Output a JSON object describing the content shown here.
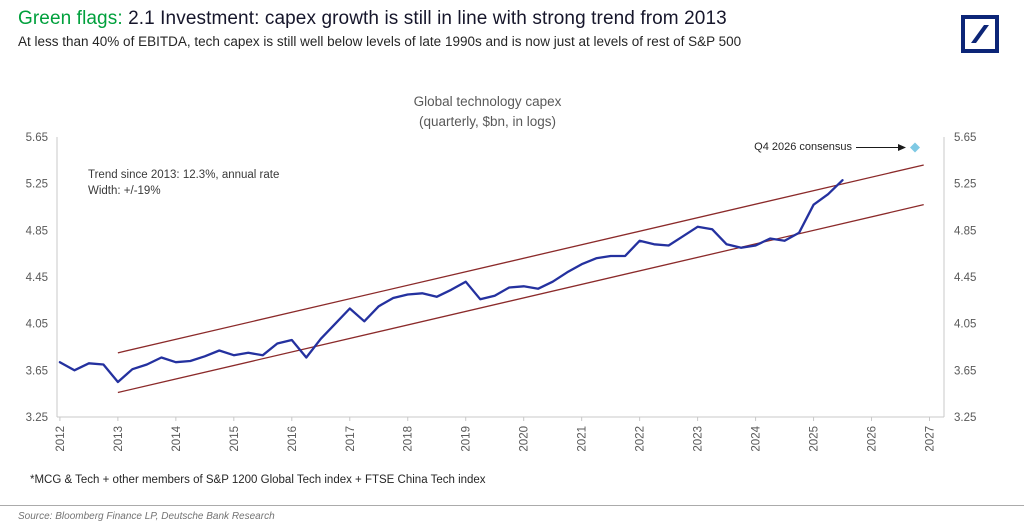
{
  "theme": {
    "green": "#00A03C",
    "title_color": "#16162B",
    "navy": "#0C2577",
    "gray_text": "#595959",
    "axis_gray": "#C8C8C8"
  },
  "header": {
    "title_highlight": "Green flags:",
    "title_rest": " 2.1 Investment: capex growth is still in line with strong trend from 2013",
    "subtitle": "At less than 40% of EBITDA, tech capex is still well below levels of late 1990s and is now just at levels of rest of S&P 500"
  },
  "logo": {
    "name": "Deutsche Bank",
    "color": "#0C2577"
  },
  "chart_data": {
    "type": "line",
    "title": "Global technology capex",
    "subtitle": "(quarterly, $bn, in logs)",
    "ylim": [
      3.25,
      5.65
    ],
    "yticks": [
      3.25,
      3.65,
      4.05,
      4.45,
      4.85,
      5.25,
      5.65
    ],
    "xlim": [
      2011.95,
      2027.25
    ],
    "xticks": [
      2012,
      2013,
      2014,
      2015,
      2016,
      2017,
      2018,
      2019,
      2020,
      2021,
      2022,
      2023,
      2024,
      2025,
      2026,
      2027
    ],
    "grid": false,
    "legend": "none",
    "series": [
      {
        "name": "Global technology capex (log level)",
        "color": "#24319F",
        "x": [
          2012.0,
          2012.25,
          2012.5,
          2012.75,
          2013.0,
          2013.25,
          2013.5,
          2013.75,
          2014.0,
          2014.25,
          2014.5,
          2014.75,
          2015.0,
          2015.25,
          2015.5,
          2015.75,
          2016.0,
          2016.25,
          2016.5,
          2016.75,
          2017.0,
          2017.25,
          2017.5,
          2017.75,
          2018.0,
          2018.25,
          2018.5,
          2018.75,
          2019.0,
          2019.25,
          2019.5,
          2019.75,
          2020.0,
          2020.25,
          2020.5,
          2020.75,
          2021.0,
          2021.25,
          2021.5,
          2021.75,
          2022.0,
          2022.25,
          2022.5,
          2022.75,
          2023.0,
          2023.25,
          2023.5,
          2023.75,
          2024.0,
          2024.25,
          2024.5,
          2024.75,
          2025.0,
          2025.25,
          2025.5
        ],
        "values": [
          3.72,
          3.65,
          3.71,
          3.7,
          3.55,
          3.66,
          3.7,
          3.76,
          3.72,
          3.73,
          3.77,
          3.82,
          3.78,
          3.8,
          3.78,
          3.88,
          3.91,
          3.76,
          3.92,
          4.05,
          4.18,
          4.07,
          4.2,
          4.27,
          4.3,
          4.31,
          4.28,
          4.34,
          4.41,
          4.26,
          4.29,
          4.36,
          4.37,
          4.35,
          4.41,
          4.49,
          4.56,
          4.61,
          4.63,
          4.63,
          4.76,
          4.73,
          4.72,
          4.8,
          4.88,
          4.86,
          4.73,
          4.7,
          4.72,
          4.78,
          4.76,
          4.83,
          5.07,
          5.16,
          5.28
        ]
      }
    ],
    "trend_channel": {
      "color": "#8B2A2A",
      "start_x": 2013.0,
      "end_x": 2026.9,
      "upper": [
        3.8,
        5.41
      ],
      "lower": [
        3.46,
        5.07
      ],
      "label_line1": "Trend since 2013: 12.3%, annual rate",
      "label_line2": "Width: +/-19%"
    },
    "consensus_point": {
      "label": "Q4 2026 consensus",
      "x": 2026.75,
      "value": 5.56,
      "color": "#7EC9E4"
    }
  },
  "footnote": "*MCG & Tech + other members of S&P 1200 Global Tech index + FTSE China Tech index",
  "source": "Source: Bloomberg Finance LP, Deutsche Bank Research"
}
